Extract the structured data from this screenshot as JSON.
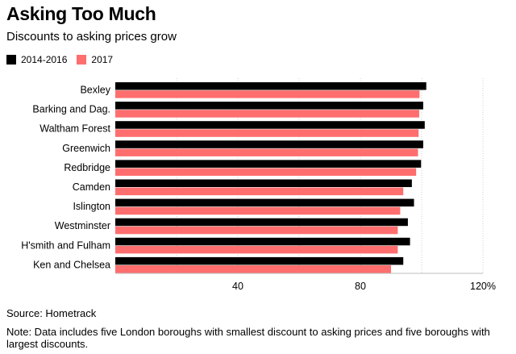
{
  "chart_data": {
    "type": "bar",
    "orientation": "horizontal",
    "title": "Asking Too Much",
    "subtitle": "Discounts to asking prices grow",
    "categories": [
      "Bexley",
      "Barking and Dag.",
      "Waltham Forest",
      "Greenwich",
      "Redbridge",
      "Camden",
      "Islington",
      "Westminster",
      "H'smith and Fulham",
      "Ken and Chelsea"
    ],
    "series": [
      {
        "name": "2014-2016",
        "color": "#000000",
        "values": [
          101.5,
          100.5,
          101,
          100.5,
          99.8,
          96.8,
          97.5,
          95.5,
          96.2,
          94
        ]
      },
      {
        "name": "2017",
        "color": "#ff6e6e",
        "values": [
          99.3,
          99.2,
          99,
          98.8,
          98.2,
          94,
          93,
          92.2,
          92.2,
          90
        ]
      }
    ],
    "xlim": [
      0,
      120
    ],
    "xticks": [
      0,
      20,
      40,
      60,
      80,
      100,
      120
    ],
    "xtick_labels": [
      "",
      "",
      "40",
      "",
      "80",
      "",
      "120%"
    ],
    "grid": true,
    "xlabel": "",
    "ylabel": ""
  },
  "footer": {
    "source": "Source: Hometrack",
    "note": "Note: Data includes five London boroughs with smallest discount to asking prices and five boroughs with largest discounts."
  }
}
